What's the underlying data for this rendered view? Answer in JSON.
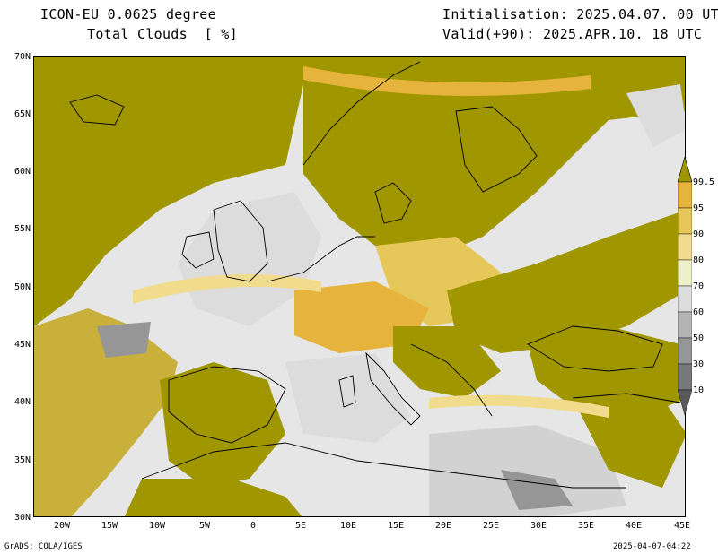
{
  "header": {
    "model": "ICON-EU 0.0625 degree",
    "variable": "Total Clouds  [ %]",
    "initialisation": "Initialisation: 2025.04.07. 00 UTC",
    "valid": "Valid(+90): 2025.APR.10. 18 UTC"
  },
  "map": {
    "lat_range": [
      30,
      70
    ],
    "lon_range": [
      -25,
      45
    ],
    "lat_labels": [
      "70N",
      "65N",
      "60N",
      "55N",
      "50N",
      "45N",
      "40N",
      "35N",
      "30N"
    ],
    "lon_labels": [
      "20W",
      "15W",
      "10W",
      "5W",
      "0",
      "5E",
      "10E",
      "15E",
      "20E",
      "25E",
      "30E",
      "35E",
      "40E",
      "45E"
    ]
  },
  "colorbar": {
    "levels": [
      "99.5",
      "95",
      "90",
      "80",
      "70",
      "60",
      "50",
      "30",
      "10"
    ],
    "colors": [
      "#a09600",
      "#e6b43c",
      "#e6c85a",
      "#f0dc8c",
      "#f0f0c8",
      "#dcdcdc",
      "#b4b4b4",
      "#969696",
      "#787878",
      "#5a5a5a"
    ]
  },
  "footer": {
    "left": "GrADS: COLA/IGES",
    "right": "2025-04-07-04:22"
  }
}
